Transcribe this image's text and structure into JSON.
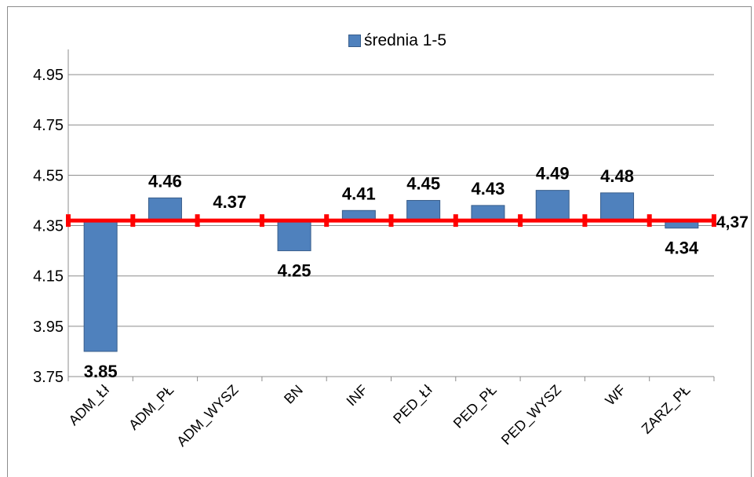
{
  "chart_data": {
    "type": "bar",
    "categories": [
      "ADM_Łł",
      "ADM_PŁ",
      "ADM_WYSZ",
      "BN",
      "INF",
      "PED_Łł",
      "PED_PŁ",
      "PED_WYSZ",
      "WF",
      "ZARZ_PŁ"
    ],
    "series": [
      {
        "name": "średnia 1-5",
        "values": [
          3.85,
          4.46,
          4.37,
          4.25,
          4.41,
          4.45,
          4.43,
          4.49,
          4.48,
          4.34
        ]
      }
    ],
    "data_labels": [
      "3.85",
      "4.46",
      "4.37",
      "4.25",
      "4.41",
      "4.45",
      "4.43",
      "4.49",
      "4.48",
      "4.34"
    ],
    "y_ticks": [
      "3.75",
      "3.95",
      "4.15",
      "4.35",
      "4.55",
      "4.75",
      "4.95"
    ],
    "ylim": [
      3.75,
      5.05
    ],
    "bar_base": 4.37,
    "reference_line": {
      "value": 4.37,
      "label": "4,37",
      "color": "#ff0000"
    },
    "bar_color": "#4f81bd",
    "bar_edge_color": "#385d8a",
    "grid": true,
    "legend_position": "top-center",
    "title": "",
    "xlabel": "",
    "ylabel": ""
  }
}
